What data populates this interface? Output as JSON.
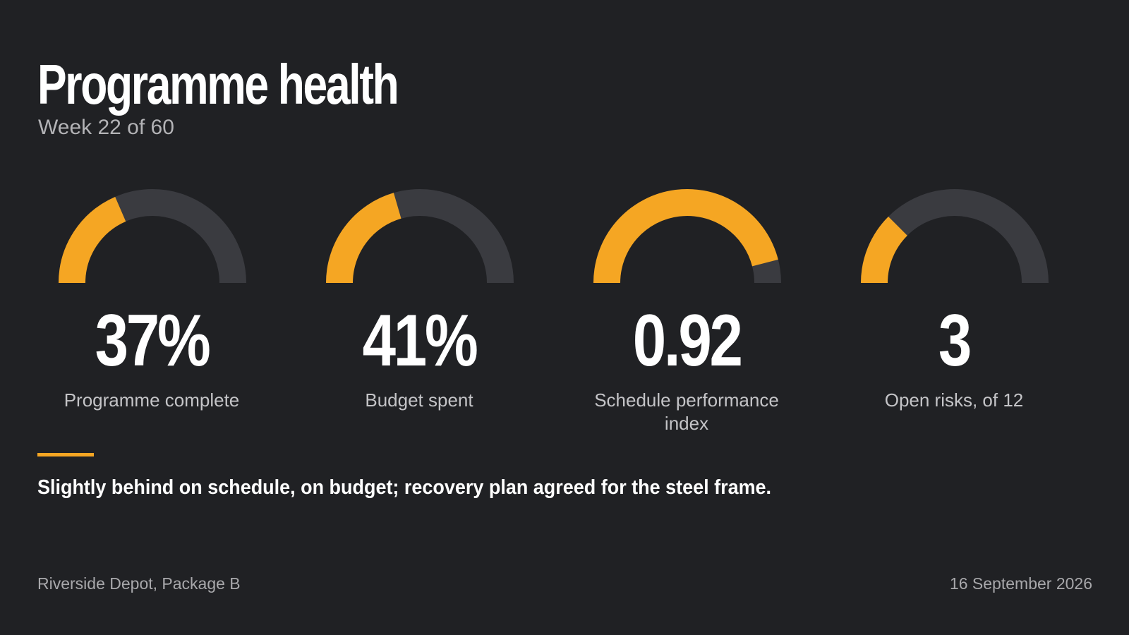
{
  "header": {
    "title": "Programme health",
    "subtitle": "Week 22 of 60"
  },
  "colors": {
    "accent": "#f5a623",
    "track": "#3a3b40",
    "background": "#202124"
  },
  "kpis": [
    {
      "value": "37%",
      "label": "Programme complete",
      "gauge_fraction": 0.37
    },
    {
      "value": "41%",
      "label": "Budget spent",
      "gauge_fraction": 0.41
    },
    {
      "value": "0.92",
      "label": "Schedule performance index",
      "gauge_fraction": 0.92
    },
    {
      "value": "3",
      "label": "Open risks, of 12",
      "gauge_fraction": 0.25
    }
  ],
  "summary": "Slightly behind on schedule, on budget; recovery plan agreed for the steel frame.",
  "footer": {
    "project": "Riverside Depot, Package B",
    "date": "16 September 2026"
  }
}
